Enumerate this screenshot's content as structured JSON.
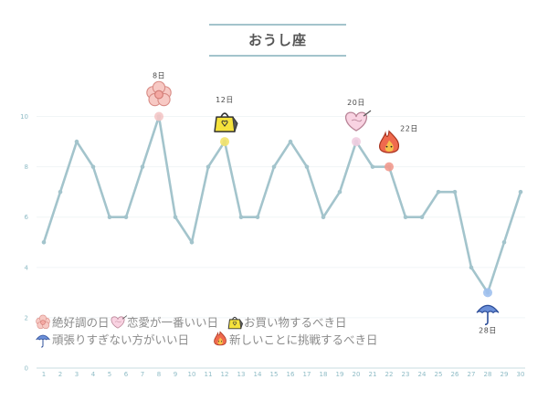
{
  "chart_data": {
    "type": "line",
    "title": "おうし座",
    "x": [
      1,
      2,
      3,
      4,
      5,
      6,
      7,
      8,
      9,
      10,
      11,
      12,
      13,
      14,
      15,
      16,
      17,
      18,
      19,
      20,
      21,
      22,
      23,
      24,
      25,
      26,
      27,
      28,
      29,
      30
    ],
    "values": [
      5,
      7,
      9,
      8,
      6,
      6,
      8,
      10,
      6,
      5,
      8,
      9,
      6,
      6,
      8,
      9,
      8,
      6,
      7,
      9,
      8,
      8,
      6,
      6,
      7,
      7,
      4,
      3,
      5,
      7
    ],
    "ylim": [
      0,
      11
    ],
    "yticks": [
      0,
      2,
      4,
      6,
      8,
      10
    ],
    "grid": true,
    "line_color": "#a3c4cc",
    "annotations": [
      {
        "day": 8,
        "label": "8日",
        "icon": "flower-icon",
        "category": "good-luck"
      },
      {
        "day": 12,
        "label": "12日",
        "icon": "bag-icon",
        "category": "shopping"
      },
      {
        "day": 20,
        "label": "20日",
        "icon": "heart-icon",
        "category": "love"
      },
      {
        "day": 22,
        "label": "22日",
        "icon": "flame-icon",
        "category": "challenge"
      },
      {
        "day": 28,
        "label": "28日",
        "icon": "umbrella-icon",
        "category": "take-it-easy"
      }
    ],
    "marker_colors": {
      "good-luck": "#f4c6c6",
      "shopping": "#f3e36a",
      "love": "#f1cde0",
      "challenge": "#f29a8e",
      "take-it-easy": "#9fc0ee"
    },
    "legend": [
      {
        "icon": "flower-icon",
        "label": "絶好調の日"
      },
      {
        "icon": "heart-icon",
        "label": "恋愛が一番いい日"
      },
      {
        "icon": "bag-icon",
        "label": "お買い物するべき日"
      },
      {
        "icon": "umbrella-icon",
        "label": "頑張りすぎない方がいい日"
      },
      {
        "icon": "flame-icon",
        "label": "新しいことに挑戦するべき日"
      }
    ]
  }
}
